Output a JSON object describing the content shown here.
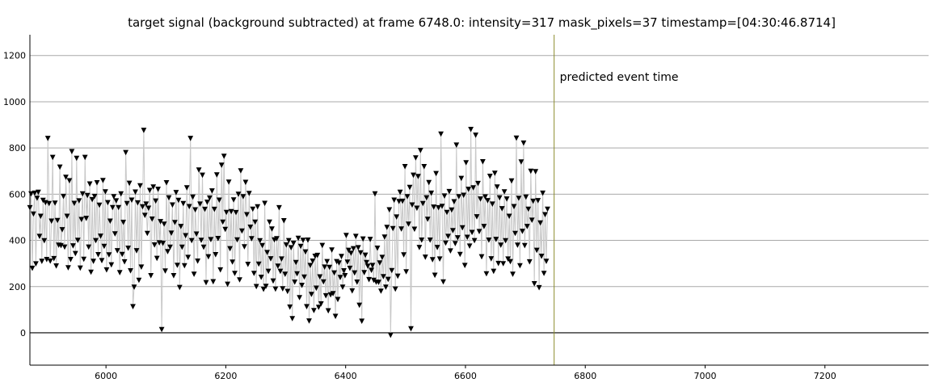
{
  "chart_data": {
    "type": "scatter",
    "title": "target signal (background subtracted) at frame 6748.0: intensity=317 mask_pixels=37 timestamp=[04:30:46.8714]",
    "xlabel": "",
    "ylabel": "",
    "xlim": [
      5873,
      7373
    ],
    "ylim": [
      -140,
      1290
    ],
    "x_ticks": [
      6000,
      6200,
      6400,
      6600,
      6800,
      7000,
      7200
    ],
    "y_ticks": [
      0,
      200,
      400,
      600,
      800,
      1000,
      1200
    ],
    "grid": true,
    "marker": "down-triangle",
    "marker_color": "#000000",
    "line_color": "#c8c8c8",
    "zero_line_color": "#000000",
    "event_line": {
      "x": 6748,
      "color": "#8b8b2e",
      "label": "predicted event time"
    },
    "series": [
      {
        "x_start": 5873,
        "x_step": 2,
        "values": [
          542,
          602,
          280,
          515,
          605,
          299,
          583,
          609,
          418,
          505,
          310,
          574,
          399,
          564,
          318,
          842,
          560,
          311,
          484,
          760,
          322,
          562,
          290,
          487,
          380,
          718,
          378,
          447,
          591,
          372,
          674,
          505,
          282,
          659,
          318,
          785,
          377,
          561,
          344,
          756,
          401,
          572,
          281,
          491,
          602,
          319,
          760,
          496,
          595,
          372,
          645,
          263,
          577,
          310,
          591,
          400,
          650,
          339,
          553,
          419,
          313,
          660,
          375,
          611,
          273,
          564,
          338,
          484,
          295,
          543,
          590,
          429,
          572,
          356,
          543,
          261,
          602,
          340,
          479,
          308,
          781,
          560,
          367,
          648,
          269,
          575,
          114,
          198,
          610,
          356,
          563,
          228,
          637,
          285,
          546,
          877,
          509,
          558,
          431,
          540,
          617,
          248,
          493,
          632,
          381,
          571,
          323,
          622,
          390,
          482,
          15,
          388,
          471,
          268,
          650,
          352,
          585,
          371,
          432,
          554,
          248,
          478,
          608,
          293,
          574,
          197,
          461,
          371,
          560,
          291,
          421,
          628,
          327,
          547,
          842,
          400,
          588,
          254,
          533,
          428,
          311,
          705,
          558,
          401,
          683,
          371,
          535,
          218,
          566,
          330,
          584,
          404,
          615,
          222,
          535,
          339,
          684,
          409,
          575,
          273,
          726,
          480,
          765,
          448,
          522,
          211,
          653,
          365,
          525,
          307,
          576,
          258,
          521,
          403,
          600,
          230,
          702,
          441,
          590,
          373,
          652,
          512,
          297,
          604,
          458,
          408,
          536,
          258,
          480,
          201,
          546,
          298,
          399,
          241,
          378,
          189,
          561,
          202,
          348,
          267,
          480,
          321,
          450,
          225,
          403,
          190,
          408,
          289,
          542,
          267,
          320,
          191,
          486,
          254,
          381,
          180,
          400,
          112,
          369,
          62,
          388,
          220,
          305,
          256,
          410,
          153,
          375,
          206,
          401,
          242,
          351,
          114,
          402,
          52,
          292,
          167,
          311,
          97,
          332,
          194,
          336,
          111,
          243,
          126,
          379,
          221,
          285,
          161,
          309,
          96,
          284,
          165,
          359,
          170,
          260,
          72,
          309,
          145,
          303,
          240,
          331,
          198,
          269,
          248,
          422,
          307,
          358,
          280,
          345,
          182,
          365,
          260,
          418,
          220,
          369,
          120,
          347,
          51,
          407,
          261,
          337,
          305,
          289,
          231,
          405,
          271,
          292,
          228,
          602,
          220,
          367,
          219,
          303,
          181,
          327,
          244,
          415,
          198,
          457,
          232,
          533,
          -10,
          270,
          452,
          575,
          190,
          502,
          246,
          569,
          609,
          450,
          570,
          338,
          720,
          265,
          590,
          471,
          630,
          18,
          554,
          683,
          449,
          758,
          540,
          677,
          370,
          790,
          402,
          560,
          720,
          328,
          585,
          492,
          651,
          402,
          605,
          317,
          545,
          250,
          690,
          370,
          542,
          320,
          861,
          548,
          221,
          593,
          389,
          522,
          418,
          612,
          355,
          532,
          443,
          568,
          387,
          813,
          412,
          590,
          340,
          669,
          455,
          596,
          292,
          737,
          414,
          622,
          376,
          881,
          435,
          628,
          400,
          856,
          503,
          647,
          439,
          580,
          330,
          741,
          461,
          589,
          256,
          573,
          402,
          678,
          321,
          558,
          267,
          691,
          405,
          632,
          301,
          585,
          380,
          538,
          300,
          611,
          399,
          580,
          320,
          505,
          309,
          658,
          254,
          547,
          431,
          843,
          380,
          583,
          291,
          740,
          440,
          822,
          378,
          588,
          461,
          536,
          308,
          700,
          488,
          570,
          213,
          698,
          358,
          573,
          196,
          476,
          332,
          605,
          258,
          512,
          310,
          536
        ]
      }
    ]
  }
}
